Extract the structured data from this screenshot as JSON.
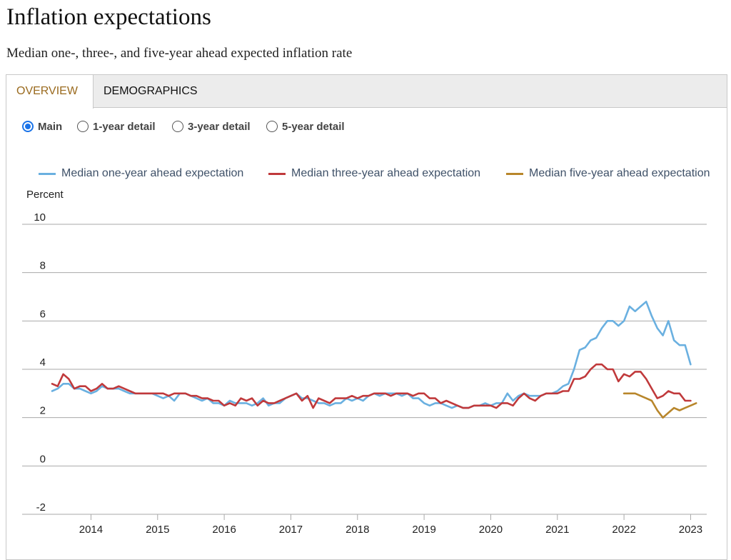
{
  "header": {
    "title": "Inflation expectations",
    "subtitle": "Median one-, three-, and five-year ahead expected inflation rate"
  },
  "tabs": [
    {
      "label": "OVERVIEW",
      "active": true
    },
    {
      "label": "DEMOGRAPHICS",
      "active": false
    }
  ],
  "views": [
    {
      "label": "Main",
      "checked": true
    },
    {
      "label": "1-year detail",
      "checked": false
    },
    {
      "label": "3-year detail",
      "checked": false
    },
    {
      "label": "5-year detail",
      "checked": false
    }
  ],
  "legend": [
    {
      "label": "Median one-year ahead expectation",
      "color": "#6ab0e0"
    },
    {
      "label": "Median three-year ahead expectation",
      "color": "#c0393b"
    },
    {
      "label": "Median five-year ahead expectation",
      "color": "#b8862b"
    }
  ],
  "chart_data": {
    "type": "line",
    "ylabel": "Percent",
    "ylim": [
      -2,
      10
    ],
    "yticks": [
      10,
      8,
      6,
      4,
      2,
      0,
      -2
    ],
    "xlim": [
      "2013-06",
      "2023-03"
    ],
    "xticks": [
      "2014",
      "2015",
      "2016",
      "2017",
      "2018",
      "2019",
      "2020",
      "2021",
      "2022",
      "2023"
    ],
    "grid": true,
    "legend_position": "top",
    "series": [
      {
        "name": "Median one-year ahead expectation",
        "color": "#6ab0e0",
        "start": "2013-06",
        "values": [
          3.1,
          3.2,
          3.4,
          3.4,
          3.2,
          3.2,
          3.1,
          3.0,
          3.1,
          3.3,
          3.2,
          3.2,
          3.2,
          3.1,
          3.0,
          3.0,
          3.0,
          3.0,
          3.0,
          2.9,
          2.8,
          2.9,
          2.7,
          3.0,
          3.0,
          2.9,
          2.8,
          2.7,
          2.8,
          2.6,
          2.6,
          2.5,
          2.7,
          2.6,
          2.6,
          2.6,
          2.5,
          2.6,
          2.8,
          2.5,
          2.6,
          2.6,
          2.8,
          2.9,
          3.0,
          2.8,
          2.8,
          2.7,
          2.6,
          2.6,
          2.5,
          2.6,
          2.6,
          2.8,
          2.7,
          2.8,
          2.7,
          2.9,
          3.0,
          2.9,
          3.0,
          3.0,
          3.0,
          2.9,
          3.0,
          2.8,
          2.8,
          2.6,
          2.5,
          2.6,
          2.6,
          2.5,
          2.4,
          2.5,
          2.4,
          2.4,
          2.5,
          2.5,
          2.6,
          2.5,
          2.6,
          2.6,
          3.0,
          2.7,
          2.9,
          3.0,
          2.9,
          2.9,
          2.9,
          3.0,
          3.0,
          3.1,
          3.3,
          3.4,
          4.0,
          4.8,
          4.9,
          5.2,
          5.3,
          5.7,
          6.0,
          6.0,
          5.8,
          6.0,
          6.6,
          6.4,
          6.6,
          6.8,
          6.2,
          5.7,
          5.4,
          6.0,
          5.2,
          5.0,
          5.0,
          4.2
        ]
      },
      {
        "name": "Median three-year ahead expectation",
        "color": "#c0393b",
        "start": "2013-06",
        "values": [
          3.4,
          3.3,
          3.8,
          3.6,
          3.2,
          3.3,
          3.3,
          3.1,
          3.2,
          3.4,
          3.2,
          3.2,
          3.3,
          3.2,
          3.1,
          3.0,
          3.0,
          3.0,
          3.0,
          3.0,
          3.0,
          2.9,
          3.0,
          3.0,
          3.0,
          2.9,
          2.9,
          2.8,
          2.8,
          2.7,
          2.7,
          2.5,
          2.6,
          2.5,
          2.8,
          2.7,
          2.8,
          2.5,
          2.7,
          2.6,
          2.6,
          2.7,
          2.8,
          2.9,
          3.0,
          2.7,
          2.9,
          2.4,
          2.8,
          2.7,
          2.6,
          2.8,
          2.8,
          2.8,
          2.9,
          2.8,
          2.9,
          2.9,
          3.0,
          3.0,
          3.0,
          2.9,
          3.0,
          3.0,
          3.0,
          2.9,
          3.0,
          3.0,
          2.8,
          2.8,
          2.6,
          2.7,
          2.6,
          2.5,
          2.4,
          2.4,
          2.5,
          2.5,
          2.5,
          2.5,
          2.4,
          2.6,
          2.6,
          2.5,
          2.8,
          3.0,
          2.8,
          2.7,
          2.9,
          3.0,
          3.0,
          3.0,
          3.1,
          3.1,
          3.6,
          3.6,
          3.7,
          4.0,
          4.2,
          4.2,
          4.0,
          4.0,
          3.5,
          3.8,
          3.7,
          3.9,
          3.9,
          3.6,
          3.2,
          2.8,
          2.9,
          3.1,
          3.0,
          3.0,
          2.7,
          2.7
        ]
      },
      {
        "name": "Median five-year ahead expectation",
        "color": "#b8862b",
        "start": "2022-01",
        "values": [
          3.0,
          3.0,
          3.0,
          2.9,
          2.8,
          2.7,
          2.3,
          2.0,
          2.2,
          2.4,
          2.3,
          2.4,
          2.5,
          2.6
        ]
      }
    ]
  }
}
